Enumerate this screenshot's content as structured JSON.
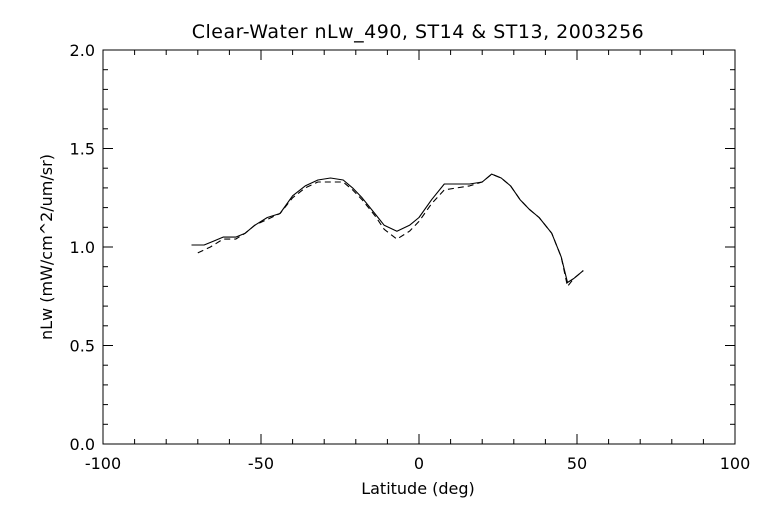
{
  "chart_data": {
    "type": "line",
    "title": "Clear-Water nLw_490, ST14 & ST13, 2003256",
    "xlabel": "Latitude (deg)",
    "ylabel": "nLw (mW/cm^2/um/sr)",
    "xlim": [
      -100,
      100
    ],
    "ylim": [
      0.0,
      2.0
    ],
    "x_ticks": [
      "-100",
      "-50",
      "0",
      "50",
      "100"
    ],
    "y_ticks": [
      "0.0",
      "0.5",
      "1.0",
      "1.5",
      "2.0"
    ],
    "grid": false,
    "series": [
      {
        "style": "solid",
        "color": "#000000",
        "x": [
          -72,
          -68,
          -65,
          -62,
          -58,
          -55,
          -52,
          -48,
          -44,
          -40,
          -36,
          -32,
          -28,
          -24,
          -21,
          -18,
          -14,
          -11,
          -7,
          -3,
          0,
          4,
          8,
          12,
          16,
          20,
          23,
          26,
          29,
          32,
          35,
          38,
          42,
          45,
          47,
          49,
          52
        ],
        "y": [
          1.01,
          1.01,
          1.03,
          1.05,
          1.05,
          1.07,
          1.11,
          1.15,
          1.17,
          1.26,
          1.31,
          1.34,
          1.35,
          1.34,
          1.3,
          1.25,
          1.17,
          1.11,
          1.08,
          1.11,
          1.15,
          1.24,
          1.32,
          1.32,
          1.32,
          1.33,
          1.37,
          1.35,
          1.31,
          1.24,
          1.19,
          1.15,
          1.07,
          0.95,
          0.82,
          0.84,
          0.88
        ]
      },
      {
        "style": "dashed",
        "color": "#000000",
        "x": [
          -70,
          -66,
          -62,
          -58,
          -55,
          -52,
          -48,
          -44,
          -40,
          -36,
          -32,
          -28,
          -24,
          -21,
          -18,
          -14,
          -11,
          -7,
          -3,
          0,
          4,
          8,
          12,
          16,
          20,
          23,
          26,
          29,
          32,
          35,
          38,
          42,
          45,
          47,
          49,
          52
        ],
        "y": [
          0.97,
          1.0,
          1.04,
          1.04,
          1.07,
          1.11,
          1.14,
          1.17,
          1.25,
          1.3,
          1.33,
          1.33,
          1.33,
          1.29,
          1.24,
          1.16,
          1.09,
          1.04,
          1.08,
          1.13,
          1.22,
          1.29,
          1.3,
          1.31,
          1.33,
          1.37,
          1.35,
          1.31,
          1.24,
          1.19,
          1.15,
          1.07,
          0.95,
          0.8,
          0.84,
          0.88
        ]
      }
    ]
  }
}
